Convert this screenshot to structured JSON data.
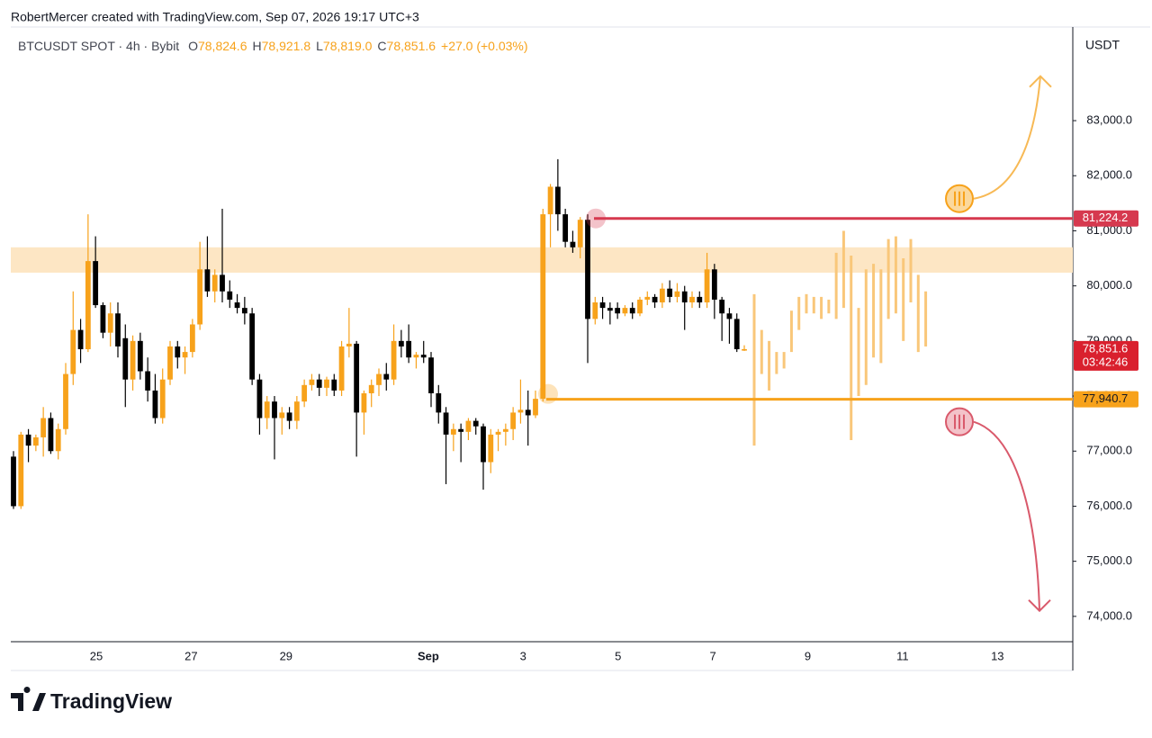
{
  "header": {
    "author_line": "RobertMercer created with TradingView.com, Sep 07, 2026 19:17 UTC+3",
    "symbol": "BTCUSDT SPOT · 4h · Bybit",
    "ohlc_legend": [
      {
        "key": "O",
        "value": "78,824.6"
      },
      {
        "key": "H",
        "value": "78,921.8"
      },
      {
        "key": "L",
        "value": "78,819.0"
      },
      {
        "key": "C",
        "value": "78,851.6"
      }
    ],
    "change": "+27.0 (+0.03%)"
  },
  "chart_data": {
    "type": "candlestick",
    "up_color": "#f7a21b",
    "down_color": "#000000",
    "candles": [
      [
        76900,
        77000,
        75950,
        76000
      ],
      [
        76000,
        77350,
        75950,
        77300
      ],
      [
        77300,
        77400,
        76800,
        77100
      ],
      [
        77100,
        77300,
        77000,
        77250
      ],
      [
        77250,
        77800,
        76900,
        77600
      ],
      [
        77600,
        77700,
        76950,
        77000
      ],
      [
        77000,
        77500,
        76850,
        77400
      ],
      [
        77400,
        78600,
        77300,
        78400
      ],
      [
        78400,
        79900,
        78200,
        79200
      ],
      [
        79200,
        79400,
        78600,
        78850
      ],
      [
        78850,
        81300,
        78800,
        80450
      ],
      [
        80450,
        80900,
        79600,
        79650
      ],
      [
        79650,
        79700,
        79050,
        79150
      ],
      [
        79150,
        79700,
        78900,
        79500
      ],
      [
        79500,
        79700,
        78700,
        78900
      ],
      [
        79050,
        79300,
        77800,
        78300
      ],
      [
        78300,
        79100,
        78100,
        79000
      ],
      [
        79000,
        79150,
        78300,
        78450
      ],
      [
        78450,
        78700,
        77900,
        78100
      ],
      [
        78100,
        78400,
        77500,
        77600
      ],
      [
        77600,
        78500,
        77500,
        78300
      ],
      [
        78300,
        79000,
        78200,
        78900
      ],
      [
        78900,
        79000,
        78500,
        78700
      ],
      [
        78700,
        78900,
        78400,
        78800
      ],
      [
        78800,
        79400,
        78700,
        79300
      ],
      [
        79300,
        80800,
        79200,
        80300
      ],
      [
        80300,
        80900,
        79800,
        79900
      ],
      [
        79900,
        80300,
        79700,
        80200
      ],
      [
        80200,
        81400,
        79700,
        79900
      ],
      [
        79900,
        80100,
        79600,
        79750
      ],
      [
        79700,
        79850,
        79500,
        79600
      ],
      [
        79600,
        79800,
        79300,
        79500
      ],
      [
        79500,
        79600,
        78200,
        78300
      ],
      [
        78300,
        78400,
        77300,
        77600
      ],
      [
        77600,
        78000,
        77400,
        77900
      ],
      [
        77900,
        78000,
        76850,
        77600
      ],
      [
        77600,
        77800,
        77300,
        77700
      ],
      [
        77700,
        77800,
        77400,
        77550
      ],
      [
        77550,
        78000,
        77400,
        77900
      ],
      [
        77900,
        78300,
        77800,
        78200
      ],
      [
        78200,
        78400,
        78100,
        78300
      ],
      [
        78300,
        78400,
        78000,
        78150
      ],
      [
        78150,
        78350,
        78000,
        78300
      ],
      [
        78300,
        78400,
        78000,
        78100
      ],
      [
        78100,
        79000,
        78000,
        78900
      ],
      [
        78900,
        79600,
        78700,
        78950
      ],
      [
        78950,
        79000,
        76900,
        77700
      ],
      [
        77700,
        78100,
        77300,
        78050
      ],
      [
        78050,
        78300,
        77800,
        78200
      ],
      [
        78200,
        78500,
        78000,
        78400
      ],
      [
        78400,
        78600,
        78100,
        78300
      ],
      [
        78300,
        79300,
        78200,
        79000
      ],
      [
        79000,
        79200,
        78700,
        78900
      ],
      [
        79000,
        79300,
        78600,
        78700
      ],
      [
        78700,
        78800,
        78500,
        78750
      ],
      [
        78750,
        79000,
        78600,
        78700
      ],
      [
        78700,
        78800,
        77800,
        78050
      ],
      [
        78050,
        78200,
        77500,
        77700
      ],
      [
        77700,
        77800,
        76400,
        77300
      ],
      [
        77300,
        77500,
        77000,
        77400
      ],
      [
        77400,
        77500,
        76800,
        77350
      ],
      [
        77350,
        77600,
        77200,
        77550
      ],
      [
        77550,
        77600,
        77300,
        77450
      ],
      [
        77450,
        77500,
        76300,
        76800
      ],
      [
        76800,
        77400,
        76600,
        77300
      ],
      [
        77300,
        77400,
        77000,
        77350
      ],
      [
        77350,
        77500,
        77100,
        77400
      ],
      [
        77400,
        77800,
        77200,
        77700
      ],
      [
        77700,
        78300,
        77500,
        77750
      ],
      [
        77750,
        78100,
        77100,
        77650
      ],
      [
        77650,
        78100,
        77600,
        77950
      ],
      [
        77950,
        81400,
        77900,
        81300
      ],
      [
        81300,
        81850,
        80700,
        81800
      ],
      [
        81800,
        82300,
        81000,
        81300
      ],
      [
        81300,
        81400,
        80700,
        80800
      ],
      [
        80800,
        81000,
        80600,
        80700
      ],
      [
        80700,
        81250,
        80500,
        81200
      ],
      [
        81200,
        81300,
        78600,
        79400
      ],
      [
        79400,
        79800,
        79300,
        79700
      ],
      [
        79700,
        79800,
        79400,
        79600
      ],
      [
        79600,
        79700,
        79300,
        79550
      ],
      [
        79600,
        79700,
        79400,
        79500
      ],
      [
        79500,
        79650,
        79450,
        79600
      ],
      [
        79600,
        79700,
        79400,
        79500
      ],
      [
        79500,
        79800,
        79450,
        79750
      ],
      [
        79750,
        79900,
        79650,
        79800
      ],
      [
        79800,
        79850,
        79600,
        79700
      ],
      [
        79700,
        80050,
        79600,
        79950
      ],
      [
        79950,
        80100,
        79700,
        79800
      ],
      [
        79800,
        80050,
        79700,
        79900
      ],
      [
        79900,
        80000,
        79200,
        79700
      ],
      [
        79700,
        79900,
        79600,
        79800
      ],
      [
        79800,
        79900,
        79600,
        79700
      ],
      [
        79700,
        80600,
        79600,
        80300
      ],
      [
        80300,
        80400,
        79400,
        79750
      ],
      [
        79750,
        79800,
        79000,
        79500
      ],
      [
        79500,
        79600,
        78950,
        79400
      ],
      [
        79400,
        79500,
        78800,
        78850
      ],
      [
        78824.6,
        78921.8,
        78819,
        78851.6
      ]
    ],
    "projection_color": "#f9c77a",
    "projection": [
      [
        77100,
        79850
      ],
      [
        78400,
        79200
      ],
      [
        78100,
        79000
      ],
      [
        78400,
        78800
      ],
      [
        78500,
        78800
      ],
      [
        78800,
        79550
      ],
      [
        79200,
        79800
      ],
      [
        79500,
        79850
      ],
      [
        79500,
        79800
      ],
      [
        79400,
        79800
      ],
      [
        79500,
        79750
      ],
      [
        79400,
        80600
      ],
      [
        79600,
        81000
      ],
      [
        77200,
        80550
      ],
      [
        78000,
        79600
      ],
      [
        78200,
        80300
      ],
      [
        78700,
        80400
      ],
      [
        78600,
        80300
      ],
      [
        79400,
        80850
      ],
      [
        79500,
        80900
      ],
      [
        79000,
        80500
      ],
      [
        79700,
        80850
      ],
      [
        78800,
        80200
      ],
      [
        78900,
        79900
      ]
    ],
    "zone": [
      80240,
      80700
    ],
    "zone_color": "#fde6c4",
    "levels": [
      {
        "value": 81224.2,
        "label": "81,224.2",
        "color": "#d6394f"
      },
      {
        "value": 77940.7,
        "label": "77,940.7",
        "color": "#f7a21b"
      }
    ],
    "last_price": {
      "value": 78851.6,
      "label": "78,851.6"
    },
    "countdown": "03:42:46",
    "last_color": "#d9202e",
    "y_unit": "USDT",
    "ylim": [
      73540,
      84700
    ],
    "yticks": [
      {
        "value": 74000,
        "label": "74,000.0"
      },
      {
        "value": 75000,
        "label": "75,000.0"
      },
      {
        "value": 76000,
        "label": "76,000.0"
      },
      {
        "value": 77000,
        "label": "77,000.0"
      },
      {
        "value": 78000,
        "label": "78,000.0"
      },
      {
        "value": 79000,
        "label": "79,000.0"
      },
      {
        "value": 80000,
        "label": "80,000.0"
      },
      {
        "value": 81000,
        "label": "81,000.0"
      },
      {
        "value": 82000,
        "label": "82,000.0"
      },
      {
        "value": 83000,
        "label": "83,000.0"
      }
    ],
    "xticks": [
      "25",
      "27",
      "29",
      "Sep",
      "3",
      "5",
      "7",
      "9",
      "11",
      "13"
    ],
    "grid": false
  },
  "footer": {
    "brand": "TradingView"
  }
}
